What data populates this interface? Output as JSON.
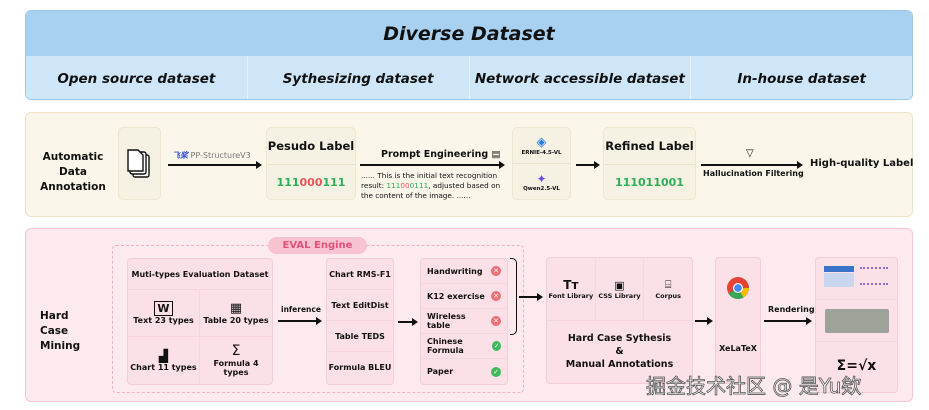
{
  "top": {
    "title": "Diverse Dataset",
    "sources": [
      "Open source dataset",
      "Sythesizing dataset",
      "Network accessible dataset",
      "In-house dataset"
    ]
  },
  "annotation": {
    "label": "Automatic Data Annotation",
    "tool_logo": "飞桨",
    "tool": "PP-StructureV3",
    "pseudo_title": "Pesudo Label",
    "pseudo_value_green1": "111",
    "pseudo_value_red": "000",
    "pseudo_value_green2": "111",
    "prompt_title": "Prompt Engineering",
    "prompt_text_pre": "...... This is the initial text recognition result: ",
    "prompt_text_post": ", adjusted based on the content of the image. ......",
    "models": [
      "ERNIE-4.5-VL",
      "Qwen2.5-VL"
    ],
    "refined_title": "Refined Label",
    "refined_value": "111011001",
    "filter_label": "Hallucination Filtering",
    "output": "High-quality Label"
  },
  "mining": {
    "label": "Hard Case Mining",
    "engine": "EVAL Engine",
    "dataset_title": "Muti-types Evaluation Dataset",
    "dataset_types": [
      {
        "icon": "word-icon",
        "label": "Text  23 types"
      },
      {
        "icon": "table-icon",
        "label": "Table  20 types"
      },
      {
        "icon": "bar-chart-icon",
        "label": "Chart  11 types"
      },
      {
        "icon": "sigma-icon",
        "label": "Formula  4 types"
      }
    ],
    "inference": "inference",
    "metrics": [
      "Chart  RMS-F1",
      "Text  EditDist",
      "Table  TEDS",
      "Formula  BLEU"
    ],
    "results": [
      {
        "label": "Handwriting",
        "status": "fail"
      },
      {
        "label": "K12 exercise",
        "status": "fail"
      },
      {
        "label": "Wireless table",
        "status": "fail"
      },
      {
        "label": "Chinese Formula",
        "status": "pass"
      },
      {
        "label": "Paper",
        "status": "pass"
      }
    ],
    "libraries": [
      "Font Library",
      "CSS Library",
      "Corpus"
    ],
    "synthesis": [
      "Hard Case Sythesis",
      "&",
      "Manual Annotations"
    ],
    "renderer": "XeLaTeX",
    "rendering": "Rendering",
    "formula_sample": "Σ=√x"
  },
  "watermark": "掘金技术社区 @ 是Yu欸"
}
